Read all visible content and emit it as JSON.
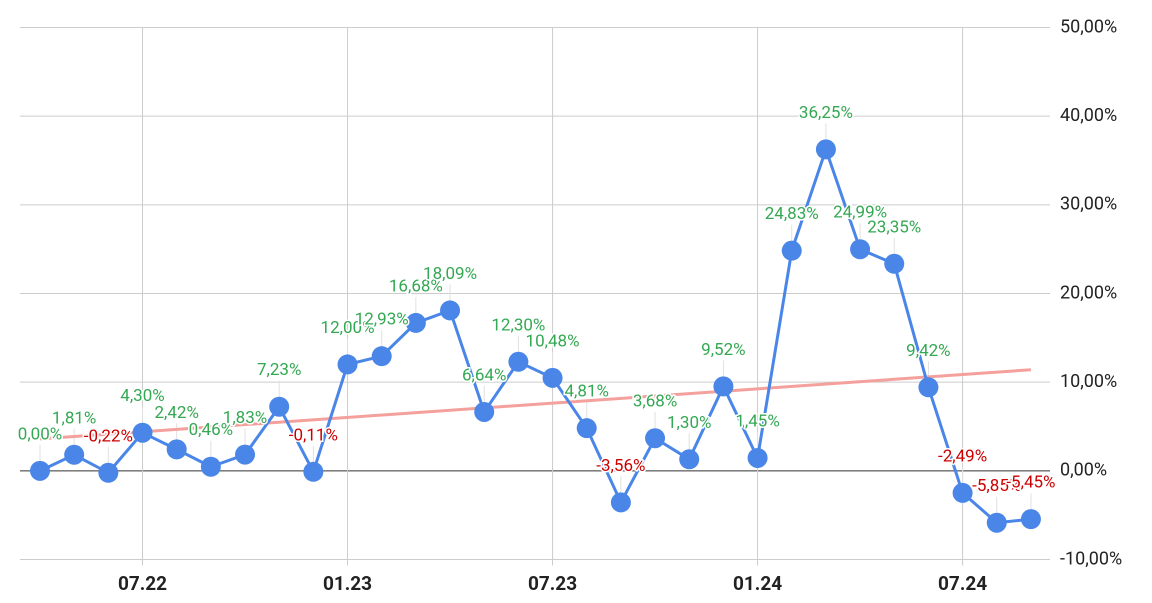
{
  "chart_data": {
    "type": "line",
    "categories": [
      null,
      null,
      null,
      "07.22",
      null,
      null,
      null,
      null,
      null,
      "01.23",
      null,
      null,
      null,
      null,
      null,
      "07.23",
      null,
      null,
      null,
      null,
      null,
      "01.24",
      null,
      null,
      null,
      null,
      null,
      "07.24",
      null,
      null
    ],
    "series": [
      {
        "color": "#4a86e8",
        "values": [
          0.0,
          1.81,
          -0.22,
          4.3,
          2.42,
          0.46,
          1.83,
          7.23,
          -0.11,
          12.0,
          12.93,
          16.68,
          18.09,
          6.64,
          12.3,
          10.48,
          4.81,
          -3.56,
          3.68,
          1.3,
          9.52,
          1.45,
          24.83,
          36.25,
          24.99,
          23.35,
          9.42,
          -2.49,
          -5.85,
          -5.45
        ],
        "value_labels": [
          "0,00%",
          "1,81%",
          "-0,22%",
          "4,30%",
          "2,42%",
          "0,46%",
          "1,83%",
          "7,23%",
          "-0,11%",
          "12,00%",
          "12,93%",
          "16,68%",
          "18,09%",
          "6,64%",
          "12,30%",
          "10,48%",
          "4,81%",
          "-3,56%",
          "3,68%",
          "1,30%",
          "9,52%",
          "1,45%",
          "24,83%",
          "36,25%",
          "24,99%",
          "23,35%",
          "9,42%",
          "-2,49%",
          "-5,85%",
          "-5,45%"
        ]
      }
    ],
    "trendline": {
      "color": "#f4a09c",
      "values": [
        3.6,
        11.4
      ]
    },
    "label_colors": {
      "positive": "#34a853",
      "negative": "#cc0000"
    },
    "ylim": [
      -10,
      50
    ],
    "yticks": [
      {
        "value": -10,
        "label": "-10,00%"
      },
      {
        "value": 0,
        "label": "0,00%"
      },
      {
        "value": 10,
        "label": "10,00%"
      },
      {
        "value": 20,
        "label": "20,00%"
      },
      {
        "value": 30,
        "label": "30,00%"
      },
      {
        "value": 40,
        "label": "40,00%"
      },
      {
        "value": 50,
        "label": "50,00%"
      }
    ],
    "grid": true
  }
}
